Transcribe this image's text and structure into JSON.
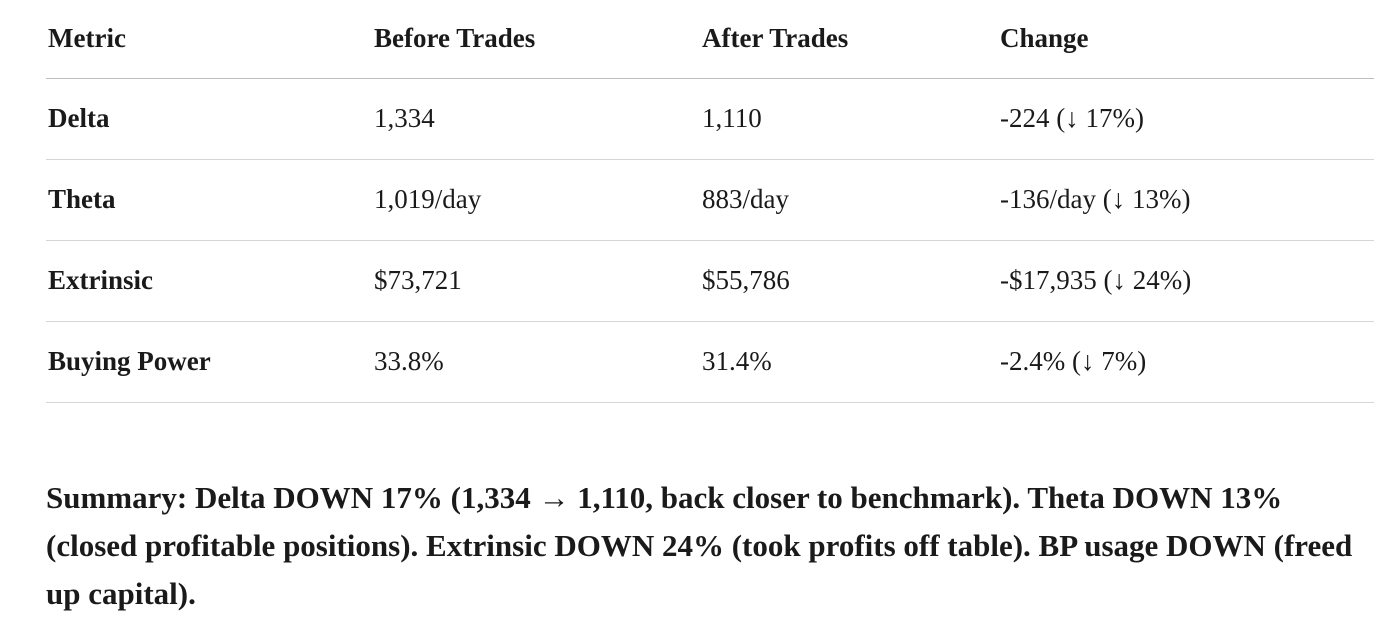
{
  "table": {
    "header": [
      "Metric",
      "Before Trades",
      "After Trades",
      "Change"
    ],
    "rows": [
      [
        "Delta",
        "1,334",
        "1,110",
        "-224 (↓ 17%)"
      ],
      [
        "Theta",
        "1,019/day",
        "883/day",
        "-136/day (↓ 13%)"
      ],
      [
        "Extrinsic",
        "$73,721",
        "$55,786",
        "-$17,935 (↓ 24%)"
      ],
      [
        "Buying Power",
        "33.8%",
        "31.4%",
        "-2.4% (↓ 7%)"
      ]
    ]
  },
  "summary": "Summary: Delta DOWN 17% (1,334 → 1,110, back closer to benchmark). Theta DOWN 13% (closed profitable positions). Extrinsic DOWN 24% (took profits off table). BP usage DOWN (freed up capital)."
}
